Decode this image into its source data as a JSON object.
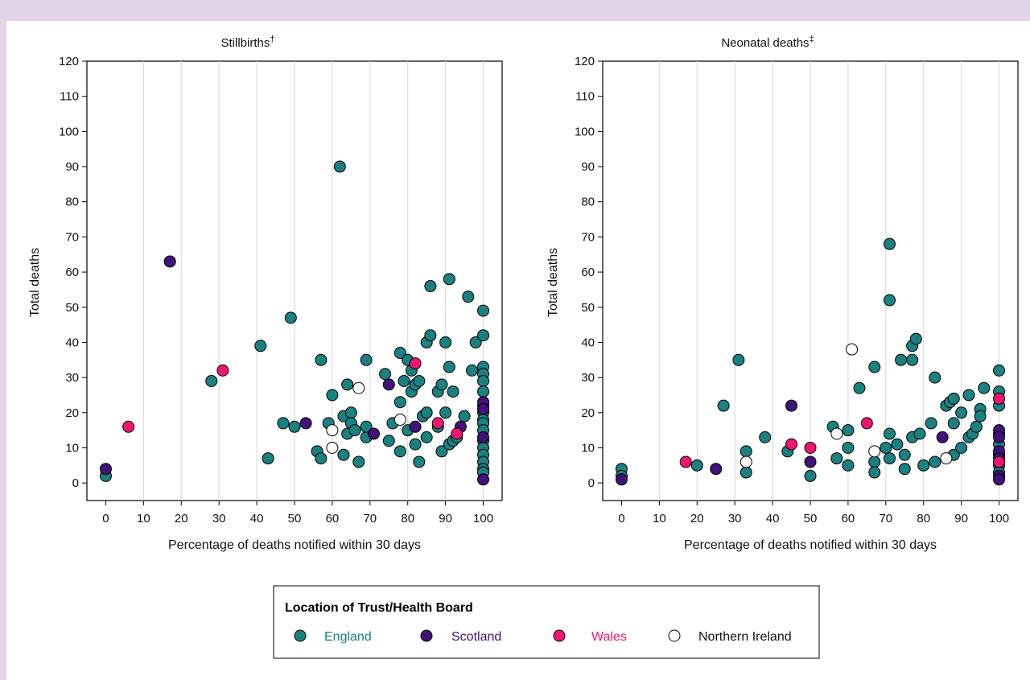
{
  "colors": {
    "England": "#1b8080",
    "Scotland": "#40127a",
    "Wales": "#ef1670",
    "Northern Ireland": "#ffffff",
    "page_background": "#e4d4e7"
  },
  "legend": {
    "title": "Location of Trust/Health Board",
    "items": [
      {
        "label": "England",
        "color": "#1b8080",
        "text_color": "#1b8080"
      },
      {
        "label": "Scotland",
        "color": "#40127a",
        "text_color": "#40127a"
      },
      {
        "label": "Wales",
        "color": "#ef1670",
        "text_color": "#ef1670"
      },
      {
        "label": "Northern Ireland",
        "color": "#ffffff",
        "text_color": "#111111"
      }
    ]
  },
  "chart_data": [
    {
      "type": "scatter",
      "title": "Stillbirths",
      "title_mark": "†",
      "xlabel": "Percentage of deaths notified within 30 days",
      "ylabel": "Total deaths",
      "xlim": [
        -5,
        105
      ],
      "ylim": [
        -5,
        120
      ],
      "xticks": [
        0,
        10,
        20,
        30,
        40,
        50,
        60,
        70,
        80,
        90,
        100
      ],
      "yticks": [
        0,
        10,
        20,
        30,
        40,
        50,
        60,
        70,
        80,
        90,
        100,
        110,
        120
      ],
      "grid": "vertical",
      "series": [
        {
          "name": "England",
          "points": [
            [
              0,
              2
            ],
            [
              28,
              29
            ],
            [
              41,
              39
            ],
            [
              43,
              7
            ],
            [
              47,
              17
            ],
            [
              49,
              47
            ],
            [
              50,
              16
            ],
            [
              56,
              9
            ],
            [
              57,
              35
            ],
            [
              57,
              7
            ],
            [
              59,
              17
            ],
            [
              60,
              25
            ],
            [
              62,
              90
            ],
            [
              63,
              19
            ],
            [
              63,
              8
            ],
            [
              64,
              14
            ],
            [
              64,
              28
            ],
            [
              65,
              20
            ],
            [
              65,
              17
            ],
            [
              66,
              15
            ],
            [
              67,
              6
            ],
            [
              69,
              35
            ],
            [
              69,
              13
            ],
            [
              69,
              16
            ],
            [
              74,
              31
            ],
            [
              75,
              12
            ],
            [
              76,
              17
            ],
            [
              78,
              37
            ],
            [
              78,
              23
            ],
            [
              78,
              9
            ],
            [
              79,
              29
            ],
            [
              80,
              35
            ],
            [
              80,
              15
            ],
            [
              81,
              32
            ],
            [
              81,
              26
            ],
            [
              82,
              28
            ],
            [
              82,
              11
            ],
            [
              83,
              6
            ],
            [
              83,
              29
            ],
            [
              84,
              19
            ],
            [
              85,
              40
            ],
            [
              85,
              13
            ],
            [
              85,
              20
            ],
            [
              86,
              56
            ],
            [
              86,
              42
            ],
            [
              88,
              26
            ],
            [
              88,
              16
            ],
            [
              89,
              28
            ],
            [
              89,
              9
            ],
            [
              90,
              40
            ],
            [
              90,
              20
            ],
            [
              91,
              58
            ],
            [
              91,
              33
            ],
            [
              91,
              11
            ],
            [
              92,
              26
            ],
            [
              92,
              12
            ],
            [
              93,
              13
            ],
            [
              95,
              19
            ],
            [
              96,
              53
            ],
            [
              97,
              32
            ],
            [
              98,
              40
            ],
            [
              100,
              49
            ],
            [
              100,
              42
            ],
            [
              100,
              33
            ],
            [
              100,
              31
            ],
            [
              100,
              29
            ],
            [
              100,
              26
            ],
            [
              100,
              22
            ],
            [
              100,
              20
            ],
            [
              100,
              18
            ],
            [
              100,
              17
            ],
            [
              100,
              15
            ],
            [
              100,
              12
            ],
            [
              100,
              10
            ],
            [
              100,
              8
            ],
            [
              100,
              6
            ],
            [
              100,
              4
            ],
            [
              100,
              3
            ]
          ]
        },
        {
          "name": "Scotland",
          "points": [
            [
              0,
              4
            ],
            [
              17,
              63
            ],
            [
              53,
              17
            ],
            [
              71,
              14
            ],
            [
              75,
              28
            ],
            [
              82,
              16
            ],
            [
              94,
              16
            ],
            [
              100,
              23
            ],
            [
              100,
              21
            ],
            [
              100,
              13
            ],
            [
              100,
              1
            ]
          ]
        },
        {
          "name": "Wales",
          "points": [
            [
              6,
              16
            ],
            [
              31,
              32
            ],
            [
              82,
              34
            ],
            [
              88,
              17
            ],
            [
              93,
              14
            ]
          ]
        },
        {
          "name": "Northern Ireland",
          "points": [
            [
              60,
              15
            ],
            [
              60,
              10
            ],
            [
              67,
              27
            ],
            [
              78,
              18
            ]
          ]
        }
      ]
    },
    {
      "type": "scatter",
      "title": "Neonatal deaths",
      "title_mark": "‡",
      "xlabel": "Percentage of deaths notified within 30 days",
      "ylabel": "Total deaths",
      "xlim": [
        -5,
        105
      ],
      "ylim": [
        -5,
        120
      ],
      "xticks": [
        0,
        10,
        20,
        30,
        40,
        50,
        60,
        70,
        80,
        90,
        100
      ],
      "yticks": [
        0,
        10,
        20,
        30,
        40,
        50,
        60,
        70,
        80,
        90,
        100,
        110,
        120
      ],
      "grid": "vertical",
      "series": [
        {
          "name": "England",
          "points": [
            [
              0,
              4
            ],
            [
              0,
              2
            ],
            [
              20,
              5
            ],
            [
              27,
              22
            ],
            [
              31,
              35
            ],
            [
              33,
              9
            ],
            [
              33,
              3
            ],
            [
              38,
              13
            ],
            [
              44,
              9
            ],
            [
              50,
              2
            ],
            [
              56,
              16
            ],
            [
              57,
              7
            ],
            [
              60,
              15
            ],
            [
              60,
              10
            ],
            [
              60,
              5
            ],
            [
              63,
              27
            ],
            [
              67,
              33
            ],
            [
              67,
              6
            ],
            [
              67,
              3
            ],
            [
              70,
              10
            ],
            [
              71,
              68
            ],
            [
              71,
              52
            ],
            [
              71,
              14
            ],
            [
              71,
              7
            ],
            [
              73,
              11
            ],
            [
              74,
              35
            ],
            [
              75,
              4
            ],
            [
              75,
              8
            ],
            [
              77,
              39
            ],
            [
              77,
              35
            ],
            [
              77,
              13
            ],
            [
              78,
              41
            ],
            [
              79,
              14
            ],
            [
              80,
              5
            ],
            [
              82,
              17
            ],
            [
              83,
              30
            ],
            [
              83,
              6
            ],
            [
              86,
              22
            ],
            [
              87,
              23
            ],
            [
              88,
              24
            ],
            [
              88,
              17
            ],
            [
              88,
              8
            ],
            [
              90,
              20
            ],
            [
              90,
              10
            ],
            [
              92,
              25
            ],
            [
              92,
              13
            ],
            [
              93,
              14
            ],
            [
              94,
              16
            ],
            [
              95,
              21
            ],
            [
              95,
              19
            ],
            [
              96,
              27
            ],
            [
              100,
              32
            ],
            [
              100,
              26
            ],
            [
              100,
              22
            ],
            [
              100,
              14
            ],
            [
              100,
              11
            ],
            [
              100,
              8
            ],
            [
              100,
              5
            ],
            [
              100,
              3
            ]
          ]
        },
        {
          "name": "Scotland",
          "points": [
            [
              0,
              1
            ],
            [
              25,
              4
            ],
            [
              45,
              22
            ],
            [
              50,
              6
            ],
            [
              85,
              13
            ],
            [
              100,
              15
            ],
            [
              100,
              13
            ],
            [
              100,
              9
            ],
            [
              100,
              7
            ],
            [
              100,
              2
            ],
            [
              100,
              1
            ]
          ]
        },
        {
          "name": "Wales",
          "points": [
            [
              17,
              6
            ],
            [
              45,
              11
            ],
            [
              50,
              10
            ],
            [
              65,
              17
            ],
            [
              100,
              24
            ],
            [
              100,
              6
            ]
          ]
        },
        {
          "name": "Northern Ireland",
          "points": [
            [
              33,
              6
            ],
            [
              57,
              14
            ],
            [
              61,
              38
            ],
            [
              67,
              9
            ],
            [
              86,
              7
            ]
          ]
        }
      ]
    }
  ]
}
